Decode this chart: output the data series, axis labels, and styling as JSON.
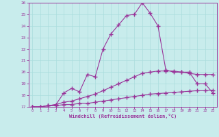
{
  "bg_color": "#c8ecec",
  "grid_color": "#aadddd",
  "line_color": "#993399",
  "xlabel": "Windchill (Refroidissement éolien,°C)",
  "xlim": [
    -0.5,
    23.5
  ],
  "ylim": [
    17,
    26
  ],
  "xticks": [
    0,
    1,
    2,
    3,
    4,
    5,
    6,
    7,
    8,
    9,
    10,
    11,
    12,
    13,
    14,
    15,
    16,
    17,
    18,
    19,
    20,
    21,
    22,
    23
  ],
  "yticks": [
    17,
    18,
    19,
    20,
    21,
    22,
    23,
    24,
    25,
    26
  ],
  "line1_x": [
    0,
    1,
    2,
    3,
    4,
    5,
    6,
    7,
    8,
    9,
    10,
    11,
    12,
    13,
    14,
    15,
    16,
    17,
    18,
    19,
    20,
    21,
    22,
    23
  ],
  "line1_y": [
    17.0,
    17.0,
    17.1,
    17.1,
    17.2,
    17.2,
    17.3,
    17.3,
    17.4,
    17.5,
    17.6,
    17.7,
    17.8,
    17.9,
    18.0,
    18.1,
    18.15,
    18.2,
    18.25,
    18.3,
    18.35,
    18.4,
    18.4,
    18.45
  ],
  "line2_x": [
    0,
    1,
    2,
    3,
    4,
    5,
    6,
    7,
    8,
    9,
    10,
    11,
    12,
    13,
    14,
    15,
    16,
    17,
    18,
    19,
    20,
    21,
    22,
    23
  ],
  "line2_y": [
    17.0,
    17.0,
    17.1,
    17.2,
    17.4,
    17.5,
    17.7,
    17.9,
    18.1,
    18.4,
    18.7,
    19.0,
    19.3,
    19.6,
    19.9,
    20.0,
    20.1,
    20.1,
    20.1,
    20.0,
    19.9,
    19.8,
    19.8,
    19.8
  ],
  "line3_x": [
    0,
    1,
    2,
    3,
    4,
    5,
    6,
    7,
    8,
    9,
    10,
    11,
    12,
    13,
    14,
    15,
    16,
    17,
    18,
    19,
    20,
    21,
    22,
    23
  ],
  "line3_y": [
    17.0,
    17.0,
    17.1,
    17.2,
    18.2,
    18.6,
    18.3,
    19.8,
    19.6,
    22.0,
    23.3,
    24.1,
    24.9,
    25.0,
    26.0,
    25.1,
    24.0,
    20.2,
    20.0,
    20.0,
    20.0,
    19.0,
    19.0,
    18.2
  ]
}
